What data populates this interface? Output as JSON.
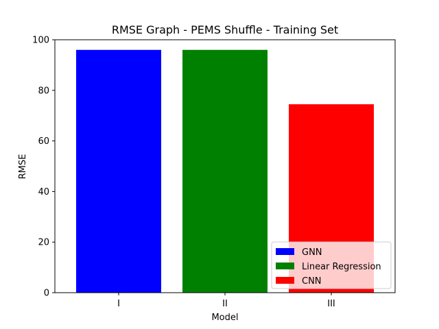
{
  "chart_data": {
    "type": "bar",
    "title": "RMSE Graph - PEMS Shuffle - Training Set",
    "xlabel": "Model",
    "ylabel": "RMSE",
    "categories": [
      "I",
      "II",
      "III"
    ],
    "series": [
      {
        "name": "GNN",
        "category": "I",
        "value": 96.0,
        "color": "#0000ff"
      },
      {
        "name": "Linear Regression",
        "category": "II",
        "value": 96.0,
        "color": "#008000"
      },
      {
        "name": "CNN",
        "category": "III",
        "value": 74.5,
        "color": "#ff0000"
      }
    ],
    "ylim": [
      0,
      100
    ],
    "yticks": [
      0,
      20,
      40,
      60,
      80,
      100
    ],
    "grid": false,
    "legend_position": "lower right"
  }
}
